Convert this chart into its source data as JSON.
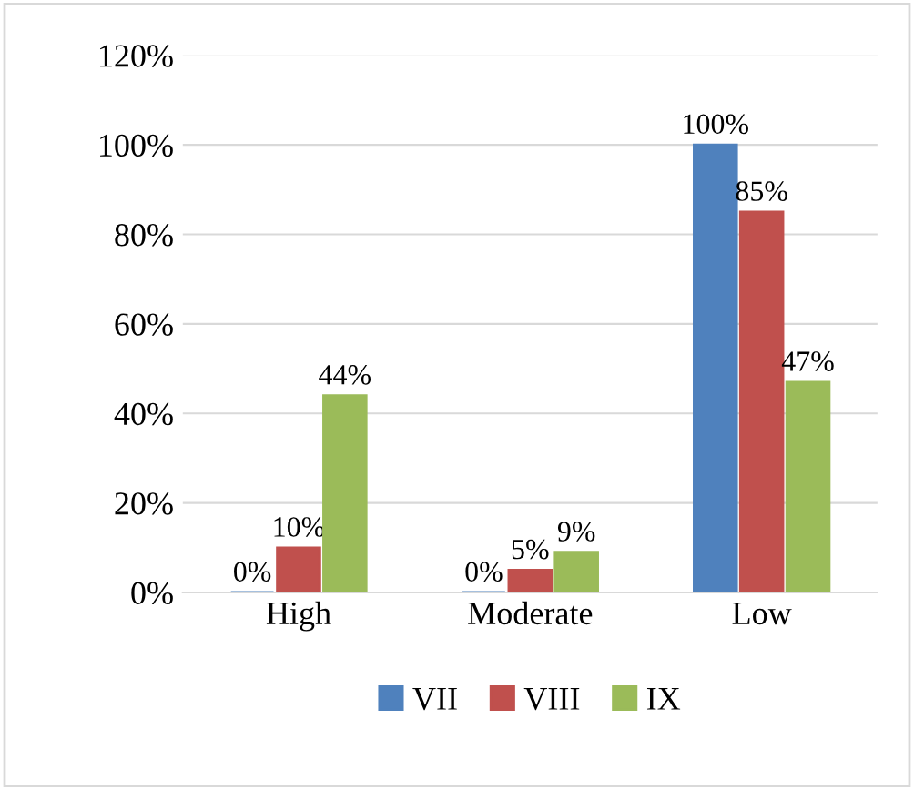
{
  "chart_data": {
    "type": "bar",
    "categories": [
      "High",
      "Moderate",
      "Low"
    ],
    "series": [
      {
        "name": "VII",
        "color": "#4f81bd",
        "values": [
          0,
          0,
          100
        ],
        "value_labels": [
          "0%",
          "0%",
          "100%"
        ]
      },
      {
        "name": "VIII",
        "color": "#c0504d",
        "values": [
          10,
          5,
          85
        ],
        "value_labels": [
          "10%",
          "5%",
          "85%"
        ]
      },
      {
        "name": "IX",
        "color": "#9bbb59",
        "values": [
          44,
          9,
          47
        ],
        "value_labels": [
          "44%",
          "9%",
          "47%"
        ]
      }
    ],
    "ylim": [
      0,
      120
    ],
    "yticks": [
      {
        "value": 0,
        "label": "0%"
      },
      {
        "value": 20,
        "label": "20%"
      },
      {
        "value": 40,
        "label": "40%"
      },
      {
        "value": 60,
        "label": "60%"
      },
      {
        "value": 80,
        "label": "80%"
      },
      {
        "value": 100,
        "label": "100%"
      },
      {
        "value": 120,
        "label": "120%"
      }
    ],
    "grid": "y",
    "legend": "bottom"
  }
}
